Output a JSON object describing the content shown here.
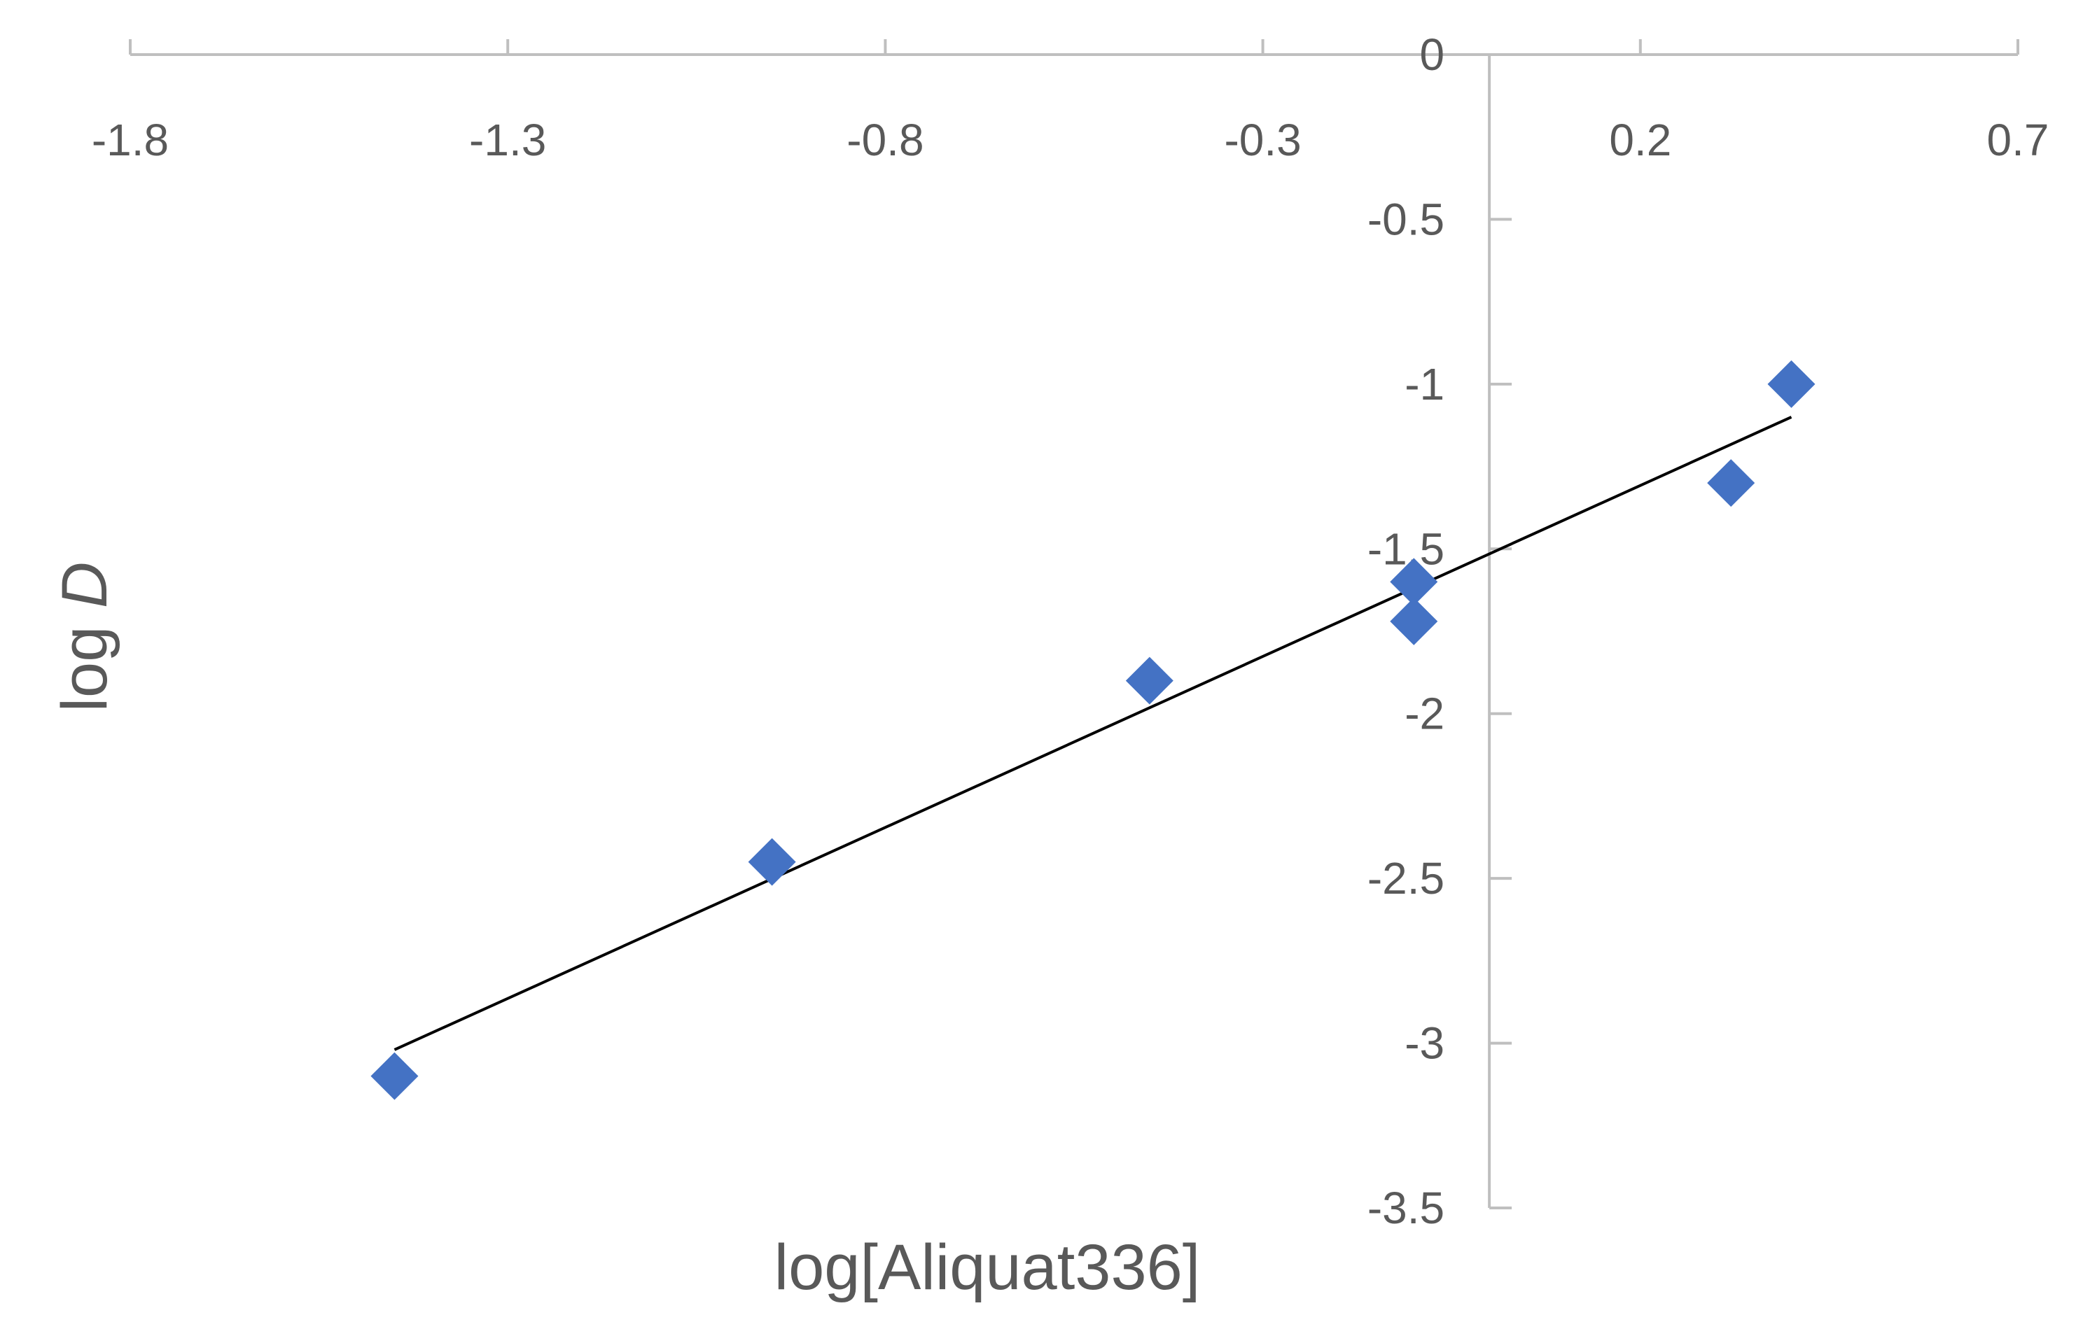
{
  "chart_data": {
    "type": "scatter",
    "title": "",
    "xlabel": "log[Aliquat336]",
    "ylabel_prefix": "log ",
    "ylabel_var": "D",
    "xlim": [
      -1.8,
      0.7
    ],
    "ylim": [
      -3.5,
      0
    ],
    "x_ticks": [
      -1.8,
      -1.3,
      -0.8,
      -0.3,
      0.2,
      0.7
    ],
    "y_ticks": [
      0,
      -0.5,
      -1,
      -1.5,
      -2,
      -2.5,
      -3,
      -3.5
    ],
    "x_tick_labels": [
      "-1.8",
      "-1.3",
      "-0.8",
      "-0.3",
      "0.2",
      "0.7"
    ],
    "y_tick_labels": [
      "0",
      "-0.5",
      "-1",
      "-1.5",
      "-2",
      "-2.5",
      "-3",
      "-3.5"
    ],
    "grid": false,
    "legend": "none",
    "marker": "diamond",
    "colors": {
      "points": "#4472C4",
      "trendline": "#000000",
      "axis": "#BFBFBF",
      "text": "#595959"
    },
    "series": [
      {
        "values": [
          {
            "x": -1.45,
            "y": -3.1
          },
          {
            "x": -0.95,
            "y": -2.45
          },
          {
            "x": -0.45,
            "y": -1.9
          },
          {
            "x": -0.1,
            "y": -1.6
          },
          {
            "x": -0.1,
            "y": -1.72
          },
          {
            "x": 0.32,
            "y": -1.3
          },
          {
            "x": 0.4,
            "y": -1.0
          }
        ]
      }
    ],
    "trendline": {
      "x_start": -1.45,
      "y_start": -3.02,
      "x_end": 0.4,
      "y_end": -1.1
    }
  }
}
